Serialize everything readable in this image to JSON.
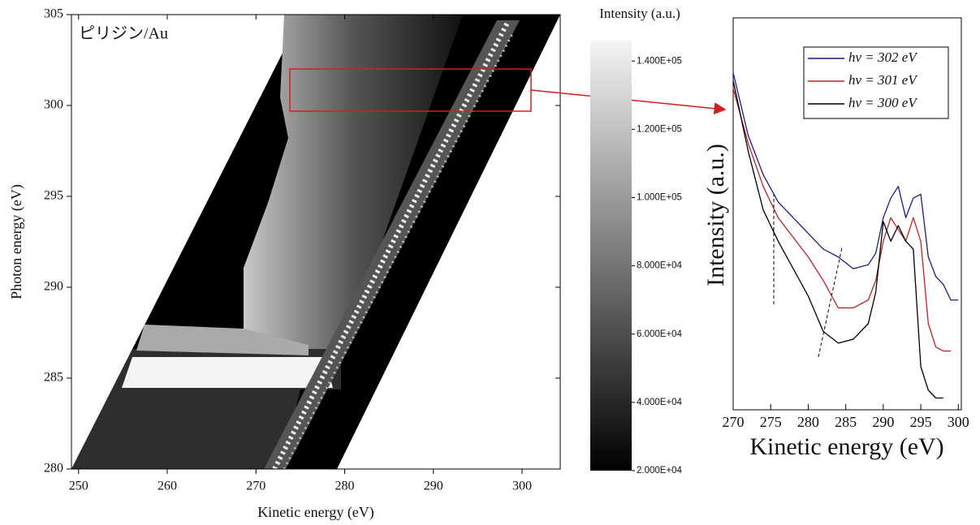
{
  "chart_data": [
    {
      "type": "heatmap",
      "annotation": "ピリジン/Au",
      "x_label": "Kinetic energy (eV)",
      "y_label": "Photon energy (eV)",
      "xlim": [
        249.2,
        304.3
      ],
      "ylim": [
        280,
        305
      ],
      "xticks": [
        250,
        260,
        270,
        280,
        290,
        300
      ],
      "yticks": [
        280,
        285,
        290,
        295,
        300,
        305
      ],
      "colorbar": {
        "title": "Intensity (a.u.)",
        "lim": [
          20000,
          146000
        ],
        "ticks": [
          {
            "value": 20000,
            "label": "2.000E+04"
          },
          {
            "value": 40000,
            "label": "4.000E+04"
          },
          {
            "value": 60000,
            "label": "6.000E+04"
          },
          {
            "value": 80000,
            "label": "8.000E+04"
          },
          {
            "value": 100000,
            "label": "1.000E+05"
          },
          {
            "value": 120000,
            "label": "1.200E+05"
          },
          {
            "value": 140000,
            "label": "1.400E+05"
          }
        ]
      }
    },
    {
      "type": "line",
      "x_label": "Kinetic energy (eV)",
      "y_label": "Intensity (a.u.)",
      "xlim": [
        270,
        300.4
      ],
      "ylim": [
        0,
        100
      ],
      "xticks": [
        270,
        275,
        280,
        285,
        290,
        295,
        300
      ],
      "legend": "upper right",
      "x": [
        270,
        272,
        274,
        276,
        278,
        280,
        282,
        284,
        286,
        288,
        289,
        290,
        291,
        292,
        293,
        294,
        295,
        296,
        297,
        298,
        299,
        300
      ],
      "series": [
        {
          "name": "hν = 302 eV",
          "color": "#1c1c8a",
          "values": [
            86,
            70,
            60,
            53,
            49,
            45,
            41,
            39,
            36,
            37,
            40,
            49,
            54,
            57,
            49,
            54,
            55,
            39,
            34,
            32,
            28,
            28
          ]
        },
        {
          "name": "hν = 301 eV",
          "color": "#c02222",
          "values": [
            82,
            68,
            57,
            49,
            44,
            39,
            33,
            26,
            26,
            28,
            33,
            43,
            49,
            46,
            43,
            49,
            43,
            22,
            16,
            15,
            15,
            null
          ]
        },
        {
          "name": "hν = 300 eV",
          "color": "#000000",
          "values": [
            84,
            66,
            51,
            43,
            36,
            29,
            20,
            17,
            18,
            22,
            30,
            48,
            43,
            47,
            43,
            41,
            11,
            5,
            3,
            3,
            null,
            null
          ]
        }
      ]
    }
  ]
}
